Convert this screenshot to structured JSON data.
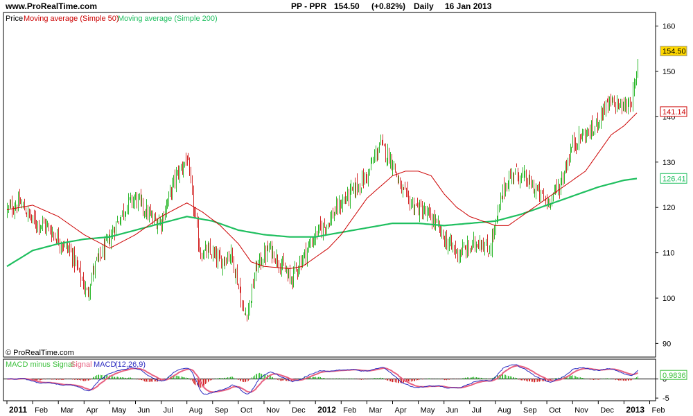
{
  "header": {
    "site": "www.ProRealTime.com",
    "symbol": "PP - PPR",
    "price": "154.50",
    "change": "(+0.82%)",
    "period": "Daily",
    "date": "16 Jan 2013"
  },
  "copyright": "© ProRealTime.com",
  "colors": {
    "up": "#2db82d",
    "down": "#d42a2a",
    "ma50": "#cc0000",
    "ma200": "#1fbf5f",
    "macd": "#2a2ac0",
    "signal": "#e86080",
    "hist_up": "#3cc03c",
    "hist_down": "#d42a2a",
    "last_price_bg": "#ffd700"
  },
  "chart_data": [
    {
      "type": "candlestick",
      "legend": [
        {
          "label": "Price",
          "color": "#000000"
        },
        {
          "label": "Moving average (Simple 50)",
          "color": "#cc0000"
        },
        {
          "label": "Moving average (Simple 200)",
          "color": "#1fbf5f"
        }
      ],
      "y_ticks": [
        "160",
        "150",
        "140",
        "130",
        "120",
        "110",
        "100",
        "90"
      ],
      "y_tick_values": [
        160,
        150,
        140,
        130,
        120,
        110,
        100,
        90
      ],
      "ylim": [
        87,
        163
      ],
      "x_labels": [
        "2011",
        "Feb",
        "Mar",
        "Apr",
        "May",
        "Jun",
        "Jul",
        "Aug",
        "Sep",
        "Oct",
        "Nov",
        "Dec",
        "2012",
        "Feb",
        "Mar",
        "Apr",
        "May",
        "Jun",
        "Jul",
        "Aug",
        "Sep",
        "Oct",
        "Nov",
        "Dec",
        "2013",
        "Feb"
      ],
      "x_label_bold": [
        true,
        false,
        false,
        false,
        false,
        false,
        false,
        false,
        false,
        false,
        false,
        false,
        true,
        false,
        false,
        false,
        false,
        false,
        false,
        false,
        false,
        false,
        false,
        false,
        true,
        false
      ],
      "x_range_months": [
        0,
        25.5
      ],
      "anchors": [
        [
          0,
          119.5
        ],
        [
          0.5,
          121
        ],
        [
          1,
          117
        ],
        [
          1.5,
          116
        ],
        [
          2,
          113
        ],
        [
          2.5,
          110
        ],
        [
          2.9,
          104
        ],
        [
          3.1,
          101
        ],
        [
          3.4,
          107
        ],
        [
          3.9,
          112
        ],
        [
          4.3,
          117
        ],
        [
          4.7,
          121
        ],
        [
          5.0,
          122
        ],
        [
          5.3,
          120
        ],
        [
          5.7,
          117
        ],
        [
          6.0,
          117
        ],
        [
          6.5,
          126
        ],
        [
          7.0,
          131
        ],
        [
          7.2,
          122
        ],
        [
          7.5,
          110
        ],
        [
          7.9,
          110
        ],
        [
          8.3,
          108
        ],
        [
          8.7,
          110
        ],
        [
          9.0,
          103
        ],
        [
          9.2,
          96
        ],
        [
          9.4,
          98
        ],
        [
          9.7,
          107
        ],
        [
          10.2,
          111
        ],
        [
          10.6,
          108
        ],
        [
          11.0,
          104
        ],
        [
          11.5,
          109
        ],
        [
          12.0,
          114
        ],
        [
          12.5,
          117
        ],
        [
          13.0,
          121
        ],
        [
          13.5,
          124
        ],
        [
          14.0,
          127
        ],
        [
          14.5,
          134
        ],
        [
          15.0,
          130
        ],
        [
          15.3,
          124
        ],
        [
          15.7,
          121
        ],
        [
          16.2,
          119
        ],
        [
          16.6,
          117
        ],
        [
          17.0,
          113
        ],
        [
          17.5,
          110
        ],
        [
          18.0,
          111
        ],
        [
          18.4,
          113
        ],
        [
          18.7,
          110
        ],
        [
          19.0,
          116
        ],
        [
          19.3,
          124
        ],
        [
          19.7,
          128
        ],
        [
          20.2,
          126
        ],
        [
          20.7,
          123
        ],
        [
          21.0,
          121
        ],
        [
          21.5,
          125
        ],
        [
          22.0,
          134
        ],
        [
          22.4,
          136
        ],
        [
          22.8,
          137
        ],
        [
          23.2,
          142
        ],
        [
          23.6,
          143
        ],
        [
          24.0,
          142
        ],
        [
          24.3,
          144
        ],
        [
          24.5,
          149
        ],
        [
          24.55,
          154.5
        ]
      ],
      "ma50": [
        [
          0,
          119.5
        ],
        [
          1,
          120.5
        ],
        [
          2,
          118
        ],
        [
          3,
          114
        ],
        [
          4,
          111
        ],
        [
          5,
          114
        ],
        [
          6,
          118
        ],
        [
          7,
          121
        ],
        [
          7.6,
          119
        ],
        [
          8.3,
          116
        ],
        [
          9.0,
          112
        ],
        [
          9.5,
          108
        ],
        [
          10,
          107
        ],
        [
          11,
          106.5
        ],
        [
          11.5,
          107
        ],
        [
          12,
          109
        ],
        [
          12.5,
          111
        ],
        [
          13,
          114
        ],
        [
          13.5,
          118
        ],
        [
          14,
          122
        ],
        [
          15,
          127
        ],
        [
          15.5,
          128
        ],
        [
          16,
          128
        ],
        [
          16.5,
          127
        ],
        [
          17,
          123
        ],
        [
          17.5,
          120
        ],
        [
          18,
          118
        ],
        [
          18.5,
          117
        ],
        [
          19,
          116
        ],
        [
          19.5,
          116
        ],
        [
          20,
          118
        ],
        [
          20.5,
          120
        ],
        [
          21,
          122
        ],
        [
          21.5,
          124
        ],
        [
          22,
          126
        ],
        [
          22.5,
          128
        ],
        [
          23,
          132
        ],
        [
          23.5,
          136
        ],
        [
          24,
          138
        ],
        [
          24.55,
          141.14
        ]
      ],
      "ma200": [
        [
          0,
          107
        ],
        [
          1,
          110.5
        ],
        [
          2,
          112
        ],
        [
          3,
          113
        ],
        [
          4,
          113.5
        ],
        [
          5,
          115
        ],
        [
          6,
          116.5
        ],
        [
          7,
          118
        ],
        [
          8,
          117
        ],
        [
          9,
          115
        ],
        [
          10,
          114
        ],
        [
          11,
          113.5
        ],
        [
          12,
          113.5
        ],
        [
          13,
          114.5
        ],
        [
          14,
          115.5
        ],
        [
          15,
          116.5
        ],
        [
          16,
          116.5
        ],
        [
          17,
          116
        ],
        [
          18,
          116.5
        ],
        [
          19,
          117
        ],
        [
          20,
          118.5
        ],
        [
          21,
          120.5
        ],
        [
          22,
          122.5
        ],
        [
          23,
          124.5
        ],
        [
          24,
          126
        ],
        [
          24.55,
          126.41
        ]
      ],
      "price_labels": [
        {
          "text": "154.50",
          "value": 154.5,
          "style": "last"
        },
        {
          "text": "141.14",
          "value": 141.14,
          "style": "ma50"
        },
        {
          "text": "126.41",
          "value": 126.41,
          "style": "ma200"
        }
      ]
    },
    {
      "type": "macd",
      "legend": [
        {
          "label": "MACD minus Signal",
          "color": "#3cc03c"
        },
        {
          "label": "Signal",
          "color": "#e86080"
        },
        {
          "label": "MACD",
          "color": "#2a2ac0"
        },
        {
          "label": "(12,26,9)",
          "color": "#2a2ac0"
        }
      ],
      "y_ticks": [
        "0",
        "-5"
      ],
      "y_tick_values": [
        0,
        -5
      ],
      "ylim": [
        -5.7,
        5.2
      ],
      "last_value_label": "0.9836",
      "last_value": 0.9836
    }
  ]
}
